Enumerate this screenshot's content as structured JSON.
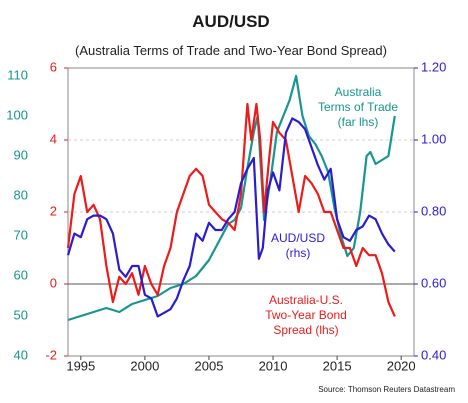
{
  "chart_data": {
    "type": "line",
    "title": "AUD/USD",
    "subtitle": "(Australia Terms of Trade and Two-Year Bond Spread)",
    "source": "Source: Thomson Reuters Datastream",
    "x_ticks": [
      "1995",
      "2000",
      "2005",
      "2010",
      "2015",
      "2020"
    ],
    "xlim": [
      1994,
      2021
    ],
    "colors": {
      "tot": "#17958f",
      "spread": "#ee1b1b",
      "aud": "#2a1ccf",
      "frame": "#8a8a8a",
      "grid": "#cfcfcf",
      "zero": "#555555"
    },
    "axes": {
      "far_left": {
        "ticks": [
          "40",
          "50",
          "60",
          "70",
          "80",
          "90",
          "100",
          "110"
        ],
        "ylim": [
          40,
          112
        ],
        "color": "#17958f"
      },
      "left": {
        "ticks": [
          "-2",
          "0",
          "2",
          "4",
          "6"
        ],
        "ylim": [
          -2,
          6
        ],
        "color": "#ee1b1b"
      },
      "right": {
        "ticks": [
          "0.40",
          "0.60",
          "0.80",
          "1.00",
          "1.20"
        ],
        "ylim": [
          0.4,
          1.2
        ],
        "color": "#2a1ccf"
      }
    },
    "annotations": {
      "tot": [
        "Australia",
        "Terms of Trade",
        "(far lhs)"
      ],
      "aud": [
        "AUD/USD",
        "(rhs)"
      ],
      "spread": [
        "Australia-U.S.",
        "Two-Year Bond",
        "Spread (lhs)"
      ]
    },
    "series": [
      {
        "name": "Australia Terms of Trade (far lhs)",
        "axis": "far_left",
        "color": "#17958f",
        "x": [
          1994,
          1995,
          1996,
          1997,
          1998,
          1999,
          2000,
          2001,
          2002,
          2003,
          2004,
          2005,
          2006,
          2006.5,
          2007,
          2007.5,
          2008,
          2008.5,
          2008.8,
          2009.3,
          2009.8,
          2010.3,
          2010.8,
          2011.3,
          2011.8,
          2012.3,
          2012.8,
          2013.3,
          2013.8,
          2014.3,
          2014.8,
          2015.3,
          2015.8,
          2016.3,
          2016.8,
          2017.3,
          2017.6,
          2018,
          2018.5,
          2019,
          2019.5
        ],
        "y": [
          49,
          50,
          51,
          52,
          51,
          53,
          54,
          55,
          57,
          58,
          60,
          64,
          70,
          73,
          74,
          77,
          87,
          96,
          100,
          74,
          84,
          96,
          100,
          104,
          110,
          100,
          95,
          93,
          90,
          86,
          77,
          70,
          65,
          67,
          76,
          90,
          91,
          88,
          89,
          90,
          100
        ]
      },
      {
        "name": "Australia-U.S. Two-Year Bond Spread (lhs)",
        "axis": "left",
        "color": "#ee1b1b",
        "x": [
          1994,
          1994.5,
          1995,
          1995.5,
          1996,
          1996.5,
          1997,
          1997.5,
          1998,
          1998.5,
          1999,
          1999.5,
          2000,
          2000.5,
          2001,
          2001.5,
          2002,
          2002.5,
          2003,
          2003.5,
          2004,
          2004.5,
          2005,
          2005.5,
          2006,
          2006.5,
          2007,
          2007.5,
          2008,
          2008.3,
          2008.7,
          2009,
          2009.3,
          2009.7,
          2010,
          2010.5,
          2011,
          2011.5,
          2012,
          2012.5,
          2013,
          2013.5,
          2014,
          2014.5,
          2015,
          2015.5,
          2016,
          2016.5,
          2017,
          2017.5,
          2018,
          2018.5,
          2019,
          2019.5
        ],
        "y": [
          1.0,
          2.5,
          3.0,
          2.0,
          2.2,
          1.8,
          0.5,
          -0.5,
          0.2,
          0.0,
          0.3,
          -0.3,
          0.5,
          0.0,
          -0.3,
          0.5,
          1.0,
          2.0,
          2.5,
          3.0,
          3.2,
          3.0,
          2.2,
          2.0,
          1.8,
          1.7,
          1.5,
          2.5,
          5.0,
          4.0,
          5.0,
          4.0,
          2.0,
          3.5,
          4.5,
          4.2,
          4.0,
          3.0,
          2.0,
          3.0,
          2.8,
          2.5,
          2.0,
          2.0,
          1.5,
          1.0,
          1.0,
          0.5,
          1.0,
          0.8,
          0.8,
          0.3,
          -0.5,
          -0.9
        ]
      },
      {
        "name": "AUD/USD (rhs)",
        "axis": "right",
        "color": "#2a1ccf",
        "x": [
          1994,
          1994.5,
          1995,
          1995.5,
          1996,
          1996.5,
          1997,
          1997.5,
          1998,
          1998.5,
          1999,
          1999.5,
          2000,
          2000.5,
          2001,
          2001.5,
          2002,
          2002.5,
          2003,
          2003.5,
          2004,
          2004.5,
          2005,
          2005.5,
          2006,
          2006.5,
          2007,
          2007.5,
          2008,
          2008.5,
          2008.9,
          2009.2,
          2009.6,
          2010,
          2010.5,
          2011,
          2011.5,
          2012,
          2012.5,
          2013,
          2013.5,
          2014,
          2014.5,
          2015,
          2015.5,
          2016,
          2016.5,
          2017,
          2017.5,
          2018,
          2018.5,
          2019,
          2019.5
        ],
        "y": [
          0.68,
          0.74,
          0.73,
          0.78,
          0.79,
          0.79,
          0.78,
          0.74,
          0.64,
          0.62,
          0.65,
          0.65,
          0.57,
          0.56,
          0.51,
          0.52,
          0.53,
          0.56,
          0.61,
          0.65,
          0.74,
          0.72,
          0.77,
          0.75,
          0.75,
          0.78,
          0.8,
          0.88,
          0.92,
          0.95,
          0.67,
          0.7,
          0.86,
          0.91,
          0.86,
          1.02,
          1.06,
          1.05,
          1.03,
          0.98,
          0.93,
          0.89,
          0.92,
          0.78,
          0.73,
          0.72,
          0.75,
          0.76,
          0.79,
          0.78,
          0.74,
          0.71,
          0.69
        ]
      }
    ]
  }
}
